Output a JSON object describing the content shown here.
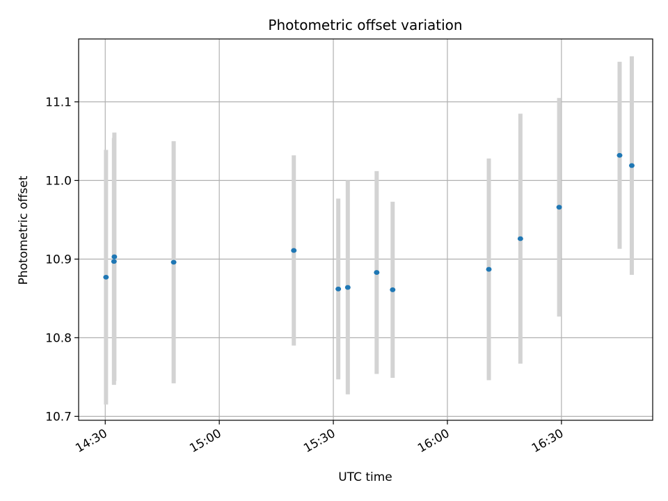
{
  "chart_data": {
    "type": "scatter",
    "title": "Photometric offset variation",
    "xlabel": "UTC time",
    "ylabel": "Photometric offset",
    "grid": true,
    "x_tick_labels": [
      "14:30",
      "15:00",
      "15:30",
      "16:00",
      "16:30"
    ],
    "x_tick_times": [
      "14:30",
      "15:00",
      "15:30",
      "16:00",
      "16:30"
    ],
    "xlim": [
      "14:23",
      "16:54"
    ],
    "y_tick_labels": [
      "10.7",
      "10.8",
      "10.9",
      "11.0",
      "11.1"
    ],
    "y_tick_values": [
      10.7,
      10.8,
      10.9,
      11.0,
      11.1
    ],
    "ylim": [
      10.695,
      11.18
    ],
    "point_color": "#1f77b4",
    "errorbar_color": "#d3d3d3",
    "series": [
      {
        "points": [
          {
            "time": "14:30:12",
            "y": 10.877,
            "yerr": 0.162
          },
          {
            "time": "14:32:18",
            "y": 10.897,
            "yerr": 0.157
          },
          {
            "time": "14:32:24",
            "y": 10.903,
            "yerr": 0.158
          },
          {
            "time": "14:48:00",
            "y": 10.896,
            "yerr": 0.154
          },
          {
            "time": "15:19:36",
            "y": 10.911,
            "yerr": 0.121
          },
          {
            "time": "15:31:18",
            "y": 10.862,
            "yerr": 0.115
          },
          {
            "time": "15:33:48",
            "y": 10.864,
            "yerr": 0.136
          },
          {
            "time": "15:41:24",
            "y": 10.883,
            "yerr": 0.129
          },
          {
            "time": "15:45:36",
            "y": 10.861,
            "yerr": 0.112
          },
          {
            "time": "16:10:54",
            "y": 10.887,
            "yerr": 0.141
          },
          {
            "time": "16:19:12",
            "y": 10.926,
            "yerr": 0.159
          },
          {
            "time": "16:29:24",
            "y": 10.966,
            "yerr": 0.139
          },
          {
            "time": "16:45:18",
            "y": 11.032,
            "yerr": 0.119
          },
          {
            "time": "16:48:30",
            "y": 11.019,
            "yerr": 0.139
          }
        ]
      }
    ]
  }
}
